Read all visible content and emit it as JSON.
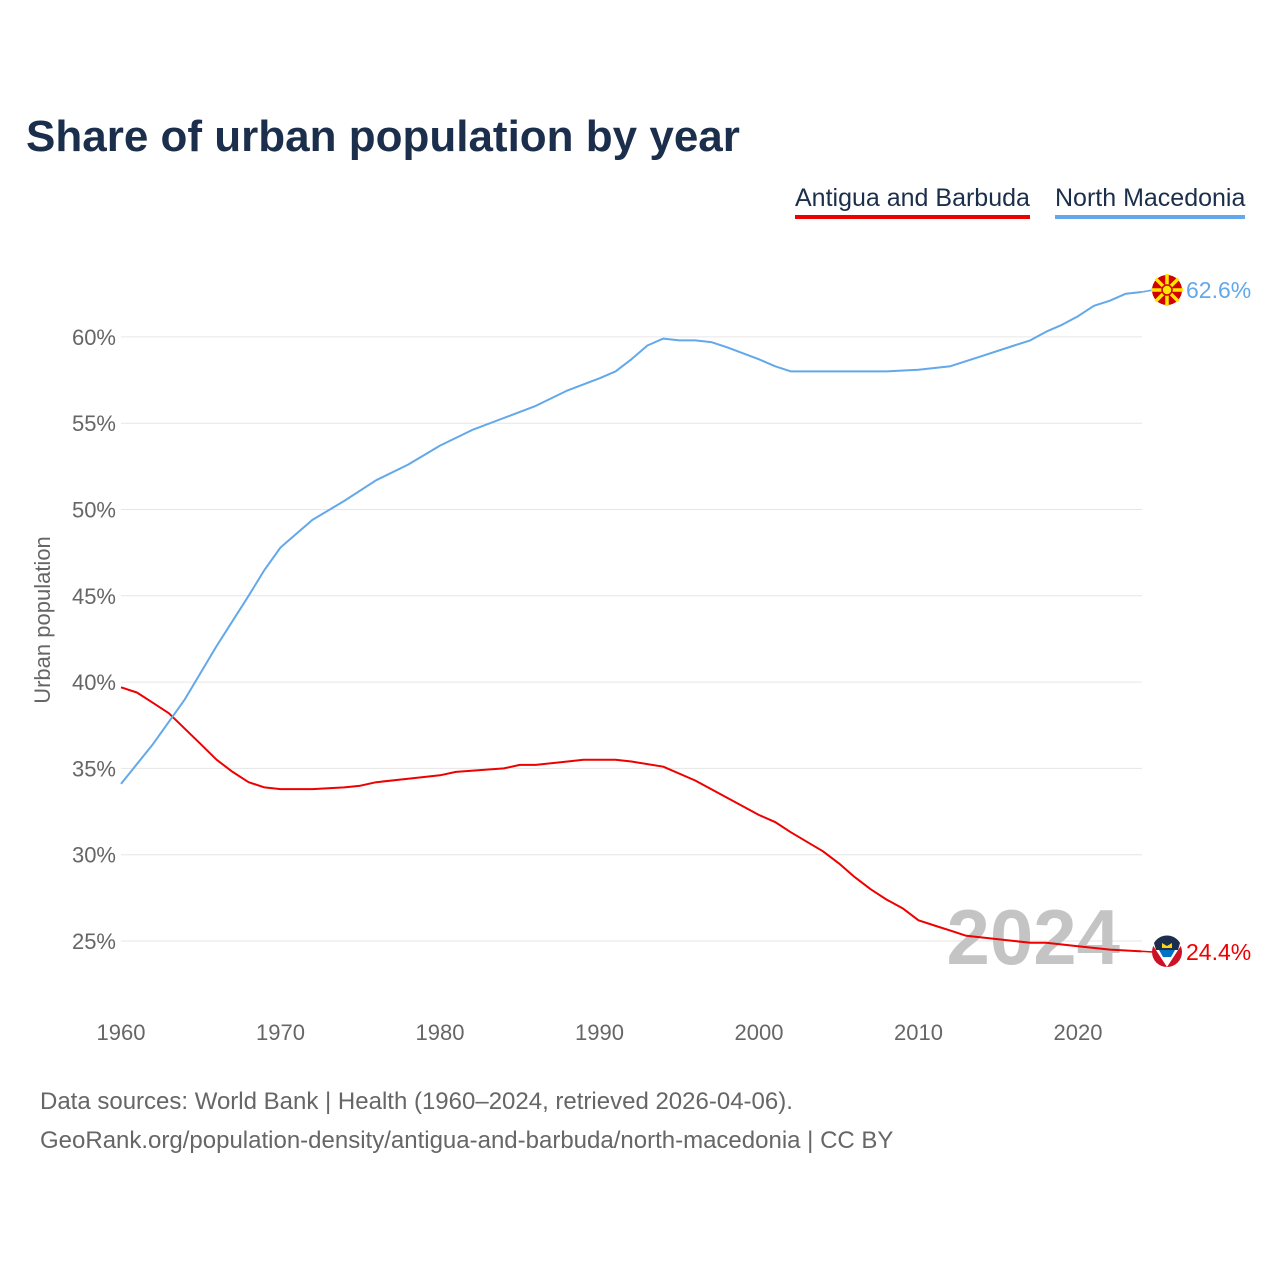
{
  "chart_data": {
    "type": "line",
    "title": "Share of urban population by year",
    "ylabel": "Urban population",
    "xlabel": "",
    "xlim": [
      1960,
      2024
    ],
    "ylim": [
      22,
      63
    ],
    "x_ticks": [
      1960,
      1970,
      1980,
      1990,
      2000,
      2010,
      2020
    ],
    "y_ticks": [
      25,
      30,
      35,
      40,
      45,
      50,
      55,
      60
    ],
    "y_tick_labels": [
      "25%",
      "30%",
      "35%",
      "40%",
      "45%",
      "50%",
      "55%",
      "60%"
    ],
    "grid": true,
    "legend_placement": "top-right",
    "watermark_year": "2024",
    "series": [
      {
        "name": "Antigua and Barbuda",
        "color": "#ee0000",
        "end_label": "24.4%",
        "flag": "antigua-and-barbuda-flag",
        "x": [
          1960,
          1961,
          1962,
          1963,
          1964,
          1965,
          1966,
          1967,
          1968,
          1969,
          1970,
          1972,
          1974,
          1975,
          1976,
          1978,
          1980,
          1981,
          1984,
          1985,
          1986,
          1988,
          1989,
          1991,
          1992,
          1994,
          1996,
          1998,
          2000,
          2001,
          2002,
          2004,
          2005,
          2006,
          2007,
          2008,
          2009,
          2010,
          2011,
          2012,
          2013,
          2014,
          2016,
          2017,
          2018,
          2020,
          2022,
          2024
        ],
        "values": [
          39.7,
          39.4,
          38.8,
          38.2,
          37.3,
          36.4,
          35.5,
          34.8,
          34.2,
          33.9,
          33.8,
          33.8,
          33.9,
          34.0,
          34.2,
          34.4,
          34.6,
          34.8,
          35.0,
          35.2,
          35.2,
          35.4,
          35.5,
          35.5,
          35.4,
          35.1,
          34.3,
          33.3,
          32.3,
          31.9,
          31.3,
          30.2,
          29.5,
          28.7,
          28.0,
          27.4,
          26.9,
          26.2,
          25.9,
          25.6,
          25.3,
          25.2,
          25.0,
          24.9,
          24.9,
          24.7,
          24.5,
          24.4
        ]
      },
      {
        "name": "North Macedonia",
        "color": "#62a8ea",
        "end_label": "62.6%",
        "flag": "north-macedonia-flag",
        "x": [
          1960,
          1962,
          1964,
          1966,
          1968,
          1969,
          1970,
          1972,
          1974,
          1976,
          1978,
          1980,
          1982,
          1984,
          1986,
          1988,
          1990,
          1991,
          1992,
          1993,
          1994,
          1995,
          1996,
          1997,
          1998,
          2000,
          2001,
          2002,
          2004,
          2008,
          2010,
          2012,
          2014,
          2016,
          2017,
          2018,
          2019,
          2020,
          2021,
          2022,
          2023,
          2024
        ],
        "values": [
          34.1,
          36.4,
          39.0,
          42.1,
          45.0,
          46.5,
          47.8,
          49.4,
          50.5,
          51.7,
          52.6,
          53.7,
          54.6,
          55.3,
          56.0,
          56.9,
          57.6,
          58.0,
          58.7,
          59.5,
          59.9,
          59.8,
          59.8,
          59.7,
          59.4,
          58.7,
          58.3,
          58.0,
          58.0,
          58.0,
          58.1,
          58.3,
          58.9,
          59.5,
          59.8,
          60.3,
          60.7,
          61.2,
          61.8,
          62.1,
          62.5,
          62.6
        ]
      }
    ]
  },
  "footer": {
    "sources": "Data sources: World Bank | Health (1960–2024, retrieved 2026-04-06).",
    "link": "GeoRank.org/population-density/antigua-and-barbuda/north-macedonia | CC BY"
  }
}
